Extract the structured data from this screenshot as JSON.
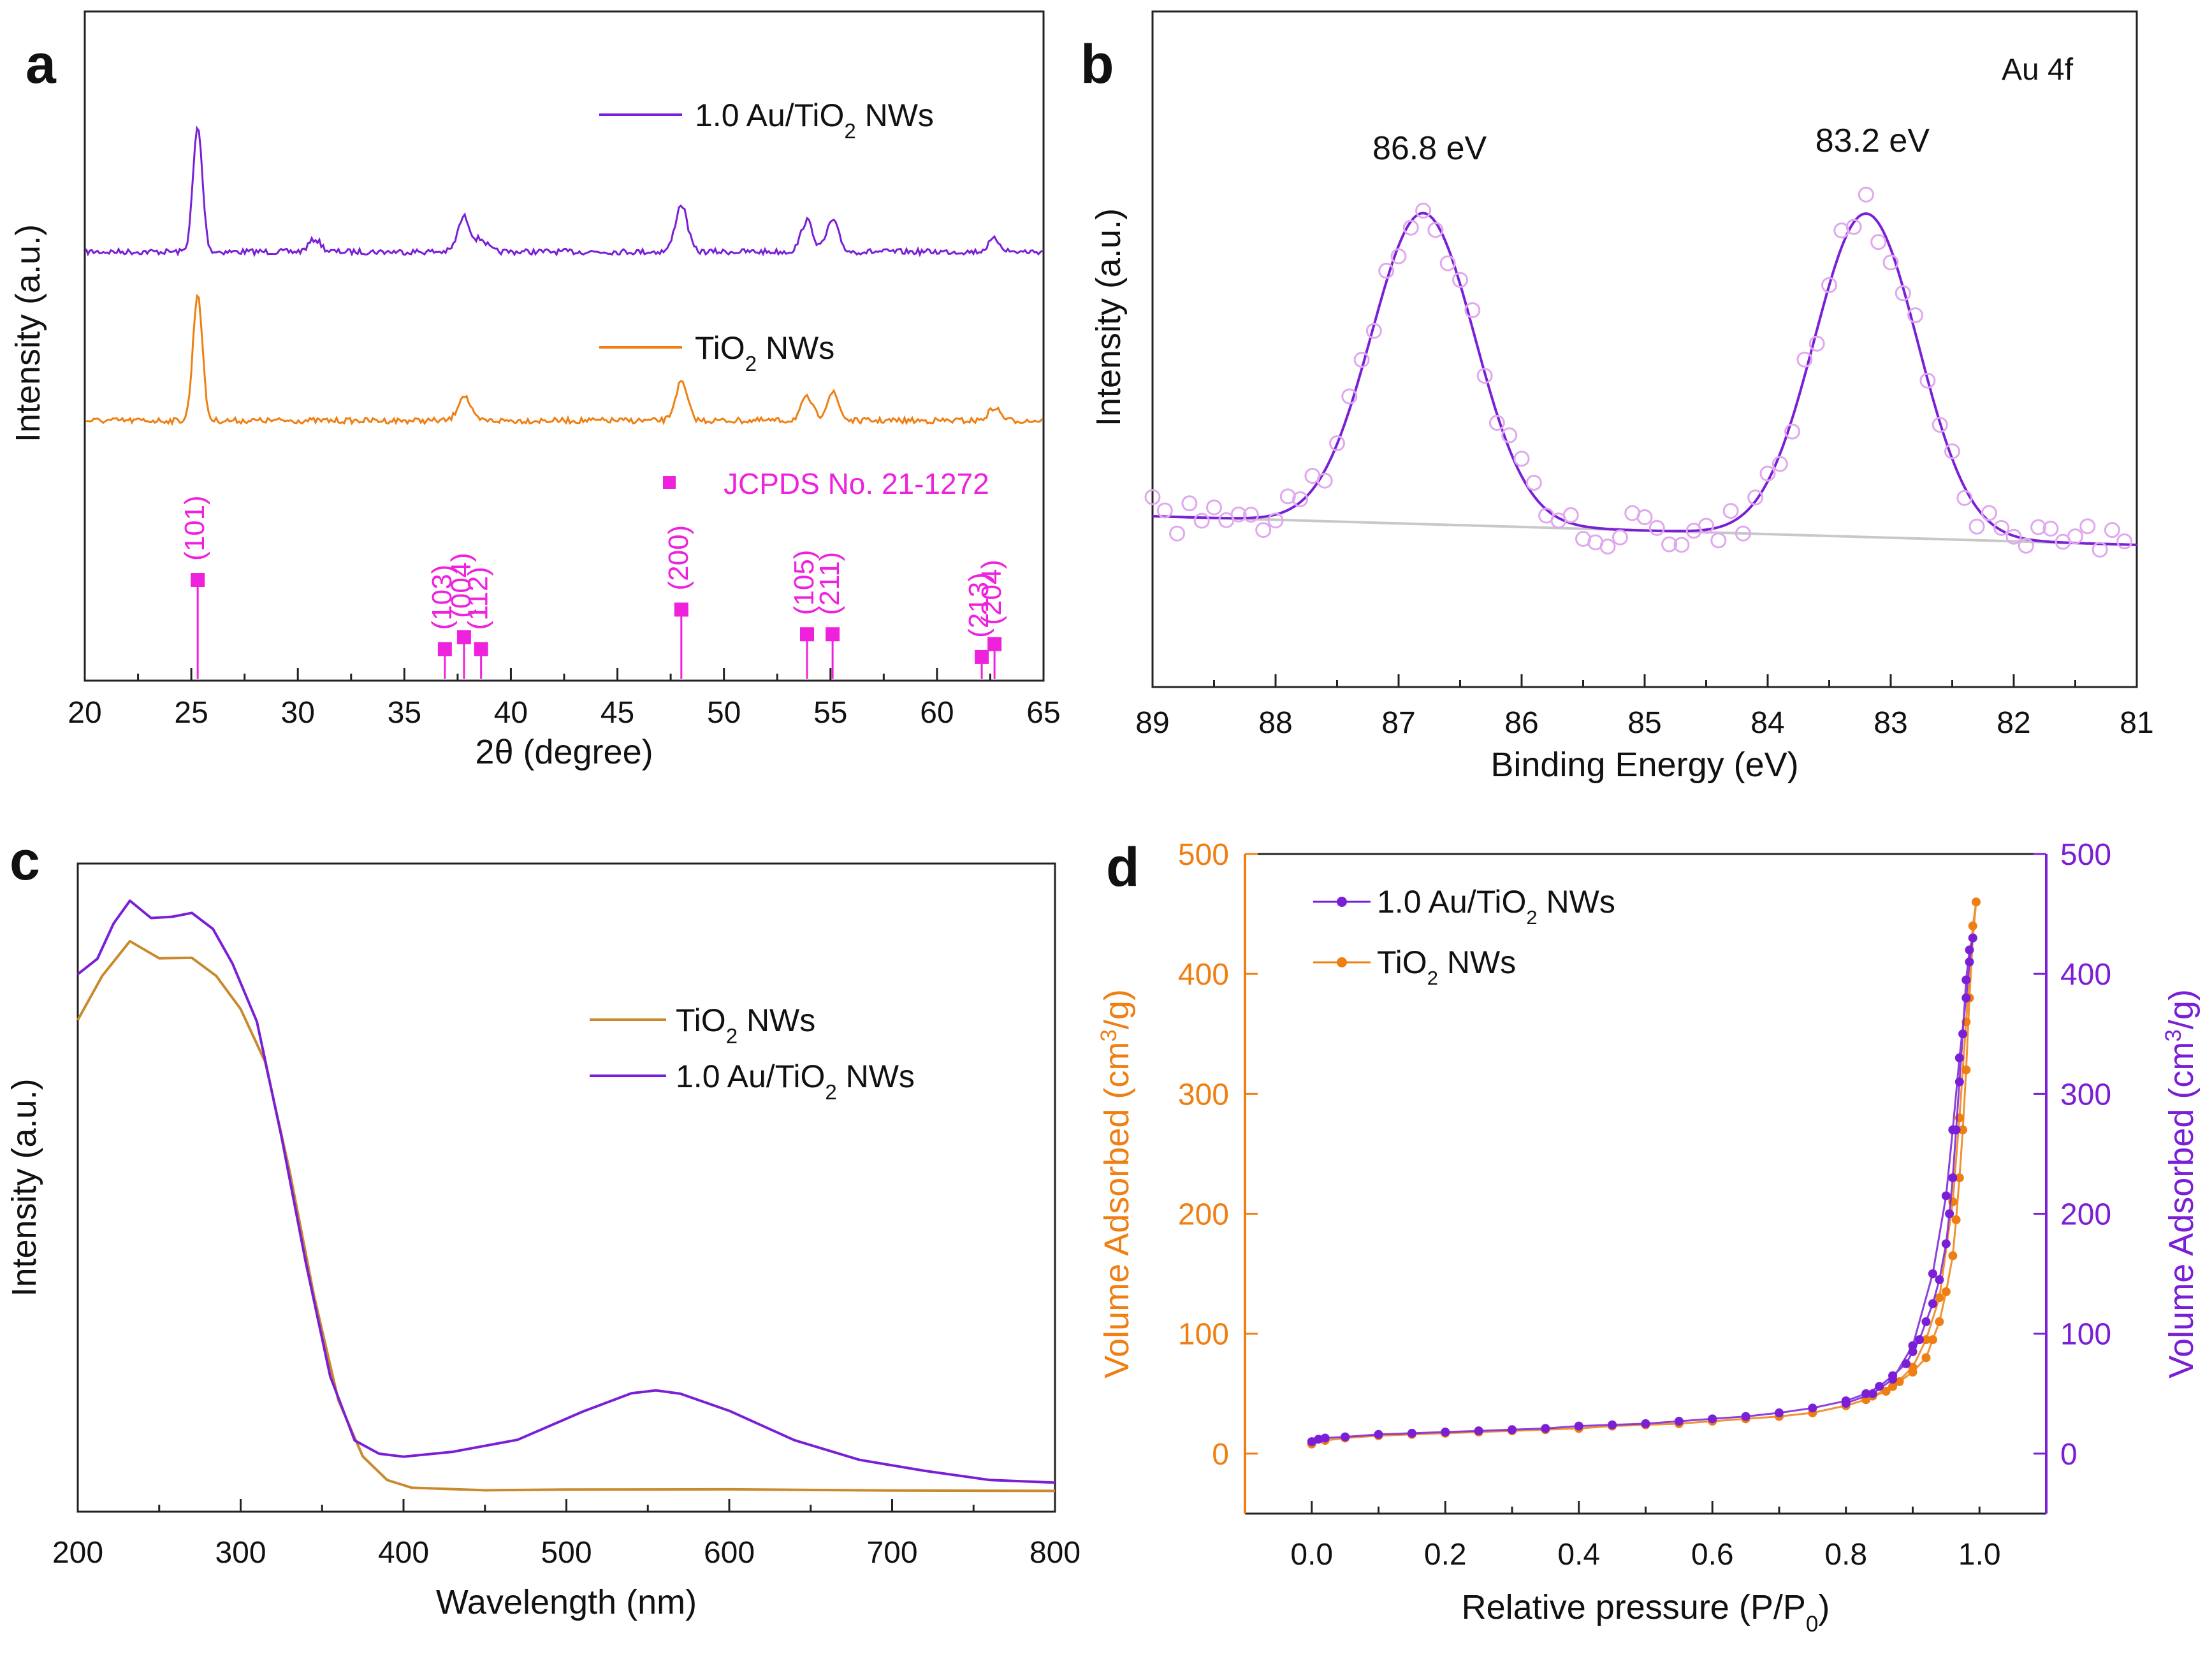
{
  "figure": {
    "panels": [
      "a",
      "b",
      "c",
      "d"
    ]
  },
  "colors": {
    "purple": "#7a1fd6",
    "orange": "#ef7f12",
    "magenta": "#ee22dd",
    "light_purple": "#e0a8ee",
    "gray": "#c8c8c8",
    "dark_orange": "#c98a2e"
  },
  "chart_data": [
    {
      "panel": "a",
      "type": "line",
      "title": "",
      "xlabel": "2θ (degree)",
      "ylabel": "Intensity (a.u.)",
      "xlim": [
        20,
        65
      ],
      "xticks": [
        "20",
        "25",
        "30",
        "35",
        "40",
        "45",
        "50",
        "55",
        "60",
        "65"
      ],
      "series": [
        {
          "name": "1.0 Au/TiO2 NWs",
          "legend_main": "1.0 Au/TiO",
          "legend_sub": "2",
          "legend_tail": " NWs",
          "color": "#7a1fd6",
          "peaks": [
            [
              25.3,
              1.0
            ],
            [
              30.8,
              0.1
            ],
            [
              37.8,
              0.28
            ],
            [
              38.6,
              0.1
            ],
            [
              48.0,
              0.38
            ],
            [
              53.9,
              0.25
            ],
            [
              55.1,
              0.25
            ],
            [
              62.7,
              0.1
            ]
          ]
        },
        {
          "name": "TiO2 NWs",
          "legend_main": "TiO",
          "legend_sub": "2",
          "legend_tail": " NWs",
          "color": "#ef7f12",
          "peaks": [
            [
              25.3,
              1.0
            ],
            [
              37.8,
              0.2
            ],
            [
              48.0,
              0.3
            ],
            [
              53.9,
              0.18
            ],
            [
              55.1,
              0.22
            ],
            [
              62.7,
              0.1
            ]
          ]
        }
      ],
      "reference": {
        "name": "JCPDS No. 21-1272",
        "color": "#ee22dd",
        "peaks": [
          {
            "x": 25.3,
            "h": 1.0,
            "label": "(101)"
          },
          {
            "x": 36.9,
            "h": 0.3,
            "label": "(103)"
          },
          {
            "x": 37.8,
            "h": 0.42,
            "label": "(004)"
          },
          {
            "x": 38.6,
            "h": 0.3,
            "label": "(112)"
          },
          {
            "x": 48.0,
            "h": 0.7,
            "label": "(200)"
          },
          {
            "x": 53.9,
            "h": 0.45,
            "label": "(105)"
          },
          {
            "x": 55.1,
            "h": 0.45,
            "label": "(211)"
          },
          {
            "x": 62.1,
            "h": 0.22,
            "label": "(213)"
          },
          {
            "x": 62.7,
            "h": 0.35,
            "label": "(204)"
          }
        ]
      }
    },
    {
      "panel": "b",
      "type": "line",
      "title": "Au 4f",
      "xlabel": "Binding Energy (eV)",
      "ylabel": "Intensity (a.u.)",
      "xlim": [
        89,
        81
      ],
      "xticks": [
        "89",
        "88",
        "87",
        "86",
        "85",
        "84",
        "83",
        "82",
        "81"
      ],
      "peaks": [
        {
          "center": 86.8,
          "label": "86.8 eV",
          "height": 1.0
        },
        {
          "center": 83.2,
          "label": "83.2 eV",
          "height": 1.04
        }
      ],
      "series": [
        {
          "name": "fit",
          "color": "#7a1fd6"
        },
        {
          "name": "raw",
          "color": "#e0a8ee"
        },
        {
          "name": "background",
          "color": "#c8c8c8"
        }
      ]
    },
    {
      "panel": "c",
      "type": "line",
      "title": "",
      "xlabel": "Wavelength (nm)",
      "ylabel": "Intensity (a.u.)",
      "xlim": [
        200,
        800
      ],
      "xticks": [
        "200",
        "300",
        "400",
        "500",
        "600",
        "700",
        "800"
      ],
      "series": [
        {
          "name": "TiO2 NWs",
          "legend_main": "TiO",
          "legend_sub": "2",
          "legend_tail": " NWs",
          "color": "#c98a2e",
          "x": [
            200,
            215,
            232,
            250,
            270,
            285,
            300,
            315,
            330,
            345,
            360,
            375,
            390,
            405,
            450,
            500,
            600,
            700,
            800
          ],
          "y": [
            0.82,
            0.9,
            0.96,
            0.93,
            0.93,
            0.9,
            0.84,
            0.75,
            0.56,
            0.34,
            0.16,
            0.06,
            0.02,
            0.005,
            0.003,
            0.002,
            0.002,
            0.002,
            0.002
          ]
        },
        {
          "name": "1.0 Au/TiO2 NWs",
          "legend_main": "1.0 Au/TiO",
          "legend_sub": "2",
          "legend_tail": " NWs",
          "color": "#7a1fd6",
          "x": [
            200,
            212,
            222,
            232,
            245,
            258,
            270,
            283,
            295,
            310,
            325,
            340,
            355,
            370,
            385,
            400,
            430,
            470,
            510,
            540,
            555,
            570,
            600,
            640,
            680,
            720,
            760,
            800
          ],
          "y": [
            0.9,
            0.93,
            0.99,
            1.03,
            1.0,
            1.0,
            1.01,
            0.98,
            0.92,
            0.82,
            0.62,
            0.4,
            0.2,
            0.09,
            0.065,
            0.062,
            0.07,
            0.09,
            0.14,
            0.17,
            0.175,
            0.17,
            0.14,
            0.09,
            0.055,
            0.035,
            0.02,
            0.015
          ]
        }
      ]
    },
    {
      "panel": "d",
      "type": "scatter",
      "title": "",
      "xlabel": "Relative pressure (P/P",
      "xlabel_sub": "0",
      "xlabel_tail": ")",
      "ylabel_left": "Volume Adsorbed (cm",
      "ylabel_left_sup": "3",
      "ylabel_left_tail": "/g)",
      "ylabel_right": "Volume Adsorbed (cm",
      "ylabel_right_sup": "3",
      "ylabel_right_tail": "/g)",
      "xlim": [
        -0.1,
        1.1
      ],
      "ylim": [
        -50,
        500
      ],
      "xticks": [
        "0.0",
        "0.2",
        "0.4",
        "0.6",
        "0.8",
        "1.0"
      ],
      "yticks": [
        "0",
        "100",
        "200",
        "300",
        "400",
        "500"
      ],
      "series": [
        {
          "name": "1.0 Au/TiO2 NWs",
          "legend_main": "1.0 Au/TiO",
          "legend_sub": "2",
          "legend_tail": " NWs",
          "color": "#7a1fd6",
          "x": [
            0.0,
            0.01,
            0.02,
            0.05,
            0.1,
            0.15,
            0.2,
            0.25,
            0.3,
            0.35,
            0.4,
            0.45,
            0.5,
            0.55,
            0.6,
            0.65,
            0.7,
            0.75,
            0.8,
            0.83,
            0.85,
            0.87,
            0.89,
            0.9,
            0.91,
            0.92,
            0.93,
            0.94,
            0.95,
            0.955,
            0.96,
            0.965,
            0.97,
            0.975,
            0.98,
            0.985,
            0.99,
            0.985,
            0.98,
            0.97,
            0.96,
            0.95,
            0.93,
            0.9,
            0.87,
            0.84,
            0.8
          ],
          "y": [
            10,
            12,
            13,
            14,
            16,
            17,
            18,
            19,
            20,
            21,
            23,
            24,
            25,
            27,
            29,
            31,
            34,
            38,
            44,
            50,
            56,
            65,
            75,
            85,
            95,
            110,
            125,
            145,
            175,
            200,
            230,
            270,
            310,
            350,
            395,
            420,
            430,
            410,
            380,
            330,
            270,
            215,
            150,
            90,
            62,
            50,
            42
          ]
        },
        {
          "name": "TiO2 NWs",
          "legend_main": "TiO",
          "legend_sub": "2",
          "legend_tail": " NWs",
          "color": "#ef7f12",
          "x": [
            0.0,
            0.02,
            0.05,
            0.1,
            0.15,
            0.2,
            0.25,
            0.3,
            0.35,
            0.4,
            0.45,
            0.5,
            0.55,
            0.6,
            0.65,
            0.7,
            0.75,
            0.8,
            0.83,
            0.86,
            0.88,
            0.9,
            0.92,
            0.93,
            0.94,
            0.95,
            0.96,
            0.965,
            0.97,
            0.975,
            0.98,
            0.985,
            0.99,
            0.995,
            0.99,
            0.98,
            0.97,
            0.96,
            0.94,
            0.92,
            0.9,
            0.87,
            0.84
          ],
          "y": [
            8,
            11,
            13,
            15,
            16,
            17,
            18,
            19,
            20,
            21,
            23,
            24,
            25,
            27,
            29,
            31,
            34,
            40,
            45,
            52,
            60,
            68,
            80,
            95,
            110,
            135,
            165,
            195,
            230,
            270,
            320,
            380,
            430,
            460,
            440,
            360,
            280,
            210,
            130,
            95,
            72,
            56,
            48
          ]
        }
      ]
    }
  ],
  "text": {
    "panel_a_letter": "a",
    "panel_b_letter": "b",
    "panel_c_letter": "c",
    "panel_d_letter": "d"
  }
}
